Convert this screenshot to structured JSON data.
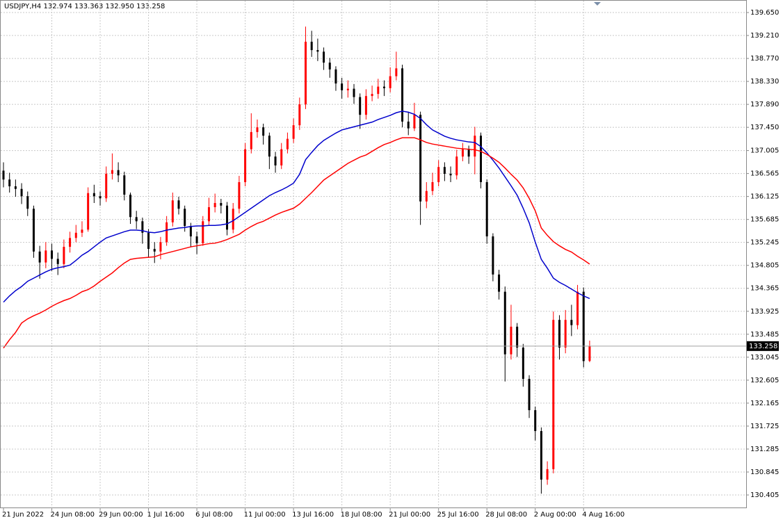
{
  "chart_data": {
    "type": "candlestick",
    "header": "USDJPY,H4  132.974 133.363 132.950 133.258",
    "categories": [
      "21 Jun 2022",
      null,
      null,
      null,
      null,
      null,
      null,
      null,
      "24 Jun 08:00",
      null,
      null,
      null,
      null,
      null,
      null,
      null,
      "29 Jun 00:00",
      null,
      null,
      null,
      null,
      null,
      null,
      null,
      "1 Jul 16:00",
      null,
      null,
      null,
      null,
      null,
      null,
      null,
      "6 Jul 08:00",
      null,
      null,
      null,
      null,
      null,
      null,
      null,
      "11 Jul 00:00",
      null,
      null,
      null,
      null,
      null,
      null,
      null,
      "13 Jul 16:00",
      null,
      null,
      null,
      null,
      null,
      null,
      null,
      "18 Jul 08:00",
      null,
      null,
      null,
      null,
      null,
      null,
      null,
      "21 Jul 00:00",
      null,
      null,
      null,
      null,
      null,
      null,
      null,
      "25 Jul 16:00",
      null,
      null,
      null,
      null,
      null,
      null,
      null,
      "28 Jul 08:00",
      null,
      null,
      null,
      null,
      null,
      null,
      null,
      "2 Aug 00:00",
      null,
      null,
      null,
      null,
      null,
      null,
      null,
      "4 Aug 16:00",
      null
    ],
    "open": [
      136.62,
      136.45,
      136.32,
      136.27,
      136.13,
      135.89,
      135.07,
      134.86,
      135.09,
      134.93,
      134.83,
      135.16,
      135.33,
      135.43,
      135.49,
      136.19,
      136.13,
      136.09,
      136.56,
      136.63,
      136.53,
      136.16,
      135.73,
      135.65,
      135.43,
      135.12,
      135.07,
      135.25,
      135.63,
      136.05,
      135.89,
      135.56,
      135.36,
      135.23,
      135.65,
      135.92,
      136.0,
      135.95,
      135.49,
      135.89,
      136.4,
      137.03,
      137.36,
      137.45,
      137.29,
      136.89,
      136.72,
      137.03,
      137.23,
      137.49,
      137.89,
      139.09,
      138.93,
      138.9,
      138.69,
      138.56,
      138.29,
      138.16,
      138.19,
      138.03,
      137.69,
      138.05,
      138.09,
      138.23,
      138.2,
      138.43,
      138.58,
      137.56,
      137.43,
      137.69,
      136.03,
      136.23,
      136.4,
      136.69,
      136.56,
      136.53,
      136.89,
      137.03,
      136.89,
      137.29,
      136.4,
      135.36,
      134.63,
      134.3,
      133.1,
      133.63,
      133.23,
      132.63,
      132.03,
      131.63,
      130.7,
      130.9,
      133.76,
      133.23,
      133.76,
      133.66,
      134.3,
      132.974
    ],
    "high": [
      136.78,
      136.58,
      136.45,
      136.38,
      136.22,
      135.95,
      135.18,
      135.25,
      135.22,
      135.05,
      135.3,
      135.45,
      135.58,
      135.65,
      136.3,
      136.35,
      136.22,
      136.7,
      136.95,
      136.78,
      136.6,
      136.2,
      135.85,
      135.72,
      135.5,
      135.25,
      135.35,
      135.75,
      136.2,
      136.12,
      135.95,
      135.62,
      135.45,
      135.75,
      136.1,
      136.18,
      136.08,
      136.02,
      136.0,
      136.52,
      137.15,
      137.72,
      137.6,
      137.52,
      137.35,
      136.98,
      137.15,
      137.35,
      137.62,
      138.02,
      139.38,
      139.3,
      139.15,
      138.98,
      138.78,
      138.62,
      138.4,
      138.35,
      138.28,
      138.1,
      138.18,
      138.25,
      138.38,
      138.35,
      138.6,
      138.9,
      138.65,
      137.75,
      137.92,
      137.75,
      136.4,
      136.58,
      136.82,
      136.78,
      136.7,
      137.02,
      137.15,
      137.1,
      137.46,
      137.35,
      136.45,
      135.42,
      134.72,
      134.4,
      134.05,
      133.7,
      133.3,
      132.7,
      132.1,
      131.7,
      131.05,
      133.92,
      133.85,
      133.95,
      134.05,
      134.43,
      134.38,
      133.363
    ],
    "low": [
      136.3,
      136.2,
      136.12,
      135.98,
      135.75,
      134.95,
      134.55,
      134.75,
      134.7,
      134.62,
      134.75,
      135.05,
      135.25,
      135.35,
      135.45,
      136.0,
      135.95,
      136.02,
      136.45,
      136.4,
      136.05,
      135.6,
      135.5,
      135.22,
      134.95,
      134.85,
      134.92,
      135.18,
      135.55,
      135.78,
      135.45,
      135.15,
      135.02,
      135.18,
      135.58,
      135.82,
      135.8,
      135.38,
      135.42,
      135.8,
      136.32,
      136.95,
      137.25,
      137.12,
      136.65,
      136.58,
      136.65,
      136.95,
      137.15,
      137.4,
      137.8,
      138.8,
      138.72,
      138.55,
      138.4,
      138.15,
      138.0,
      138.02,
      137.9,
      137.42,
      137.6,
      137.95,
      138.0,
      138.05,
      138.12,
      138.35,
      137.45,
      137.3,
      137.38,
      135.58,
      135.9,
      136.15,
      136.32,
      136.42,
      136.4,
      136.45,
      136.8,
      136.75,
      136.55,
      136.28,
      135.22,
      134.5,
      134.15,
      132.58,
      133.0,
      133.05,
      132.48,
      131.88,
      131.45,
      130.43,
      130.6,
      130.82,
      133.0,
      133.12,
      133.45,
      133.58,
      132.85,
      132.95
    ],
    "close": [
      136.45,
      136.32,
      136.27,
      136.13,
      135.89,
      135.07,
      134.86,
      135.09,
      134.93,
      134.83,
      135.16,
      135.33,
      135.43,
      135.49,
      136.19,
      136.13,
      136.09,
      136.56,
      136.63,
      136.53,
      136.16,
      135.73,
      135.65,
      135.43,
      135.12,
      135.07,
      135.25,
      135.63,
      136.05,
      135.89,
      135.56,
      135.36,
      135.23,
      135.65,
      135.92,
      136.0,
      135.95,
      135.49,
      135.89,
      136.4,
      137.03,
      137.36,
      137.45,
      137.29,
      136.89,
      136.72,
      137.03,
      137.23,
      137.49,
      137.89,
      139.09,
      138.93,
      138.9,
      138.69,
      138.56,
      138.29,
      138.16,
      138.19,
      138.03,
      137.69,
      138.05,
      138.09,
      138.23,
      138.2,
      138.43,
      138.58,
      137.56,
      137.43,
      137.69,
      136.03,
      136.23,
      136.4,
      136.69,
      136.56,
      136.53,
      136.89,
      137.03,
      136.89,
      137.29,
      136.4,
      135.36,
      134.63,
      134.3,
      133.1,
      133.63,
      133.23,
      132.63,
      132.03,
      131.63,
      130.7,
      130.9,
      133.76,
      133.23,
      133.76,
      133.66,
      134.3,
      132.97,
      133.258
    ],
    "up_color": "#ff0000",
    "down_color": "#000000",
    "lines": [
      {
        "color": "#0000cc",
        "values": [
          134.1,
          134.22,
          134.32,
          134.4,
          134.5,
          134.56,
          134.62,
          134.68,
          134.73,
          134.76,
          134.78,
          134.81,
          134.9,
          135.0,
          135.07,
          135.16,
          135.25,
          135.33,
          135.37,
          135.41,
          135.45,
          135.48,
          135.48,
          135.47,
          135.44,
          135.43,
          135.45,
          135.48,
          135.5,
          135.52,
          135.53,
          135.55,
          135.56,
          135.56,
          135.57,
          135.57,
          135.58,
          135.6,
          135.66,
          135.74,
          135.82,
          135.9,
          135.98,
          136.06,
          136.14,
          136.2,
          136.25,
          136.31,
          136.38,
          136.55,
          136.83,
          136.97,
          137.1,
          137.2,
          137.27,
          137.34,
          137.4,
          137.43,
          137.46,
          137.49,
          137.52,
          137.55,
          137.6,
          137.64,
          137.68,
          137.73,
          137.76,
          137.74,
          137.7,
          137.62,
          137.5,
          137.4,
          137.34,
          137.28,
          137.24,
          137.21,
          137.19,
          137.17,
          137.16,
          137.08,
          136.96,
          136.82,
          136.67,
          136.5,
          136.33,
          136.15,
          135.9,
          135.62,
          135.25,
          134.92,
          134.75,
          134.56,
          134.48,
          134.42,
          134.35,
          134.28,
          134.22,
          134.17
        ]
      },
      {
        "color": "#ff0000",
        "values": [
          133.22,
          133.38,
          133.52,
          133.7,
          133.78,
          133.84,
          133.89,
          133.95,
          134.02,
          134.08,
          134.13,
          134.17,
          134.23,
          134.3,
          134.34,
          134.41,
          134.5,
          134.58,
          134.66,
          134.76,
          134.85,
          134.92,
          134.94,
          134.95,
          134.96,
          134.97,
          135.01,
          135.04,
          135.07,
          135.1,
          135.13,
          135.16,
          135.18,
          135.2,
          135.22,
          135.23,
          135.26,
          135.3,
          135.35,
          135.4,
          135.48,
          135.55,
          135.61,
          135.65,
          135.71,
          135.77,
          135.82,
          135.86,
          135.9,
          135.98,
          136.09,
          136.2,
          136.32,
          136.44,
          136.52,
          136.6,
          136.68,
          136.76,
          136.82,
          136.88,
          136.92,
          136.99,
          137.06,
          137.12,
          137.16,
          137.21,
          137.25,
          137.25,
          137.25,
          137.21,
          137.16,
          137.13,
          137.11,
          137.09,
          137.07,
          137.05,
          137.04,
          137.03,
          137.02,
          136.99,
          136.93,
          136.86,
          136.78,
          136.67,
          136.55,
          136.44,
          136.29,
          136.09,
          135.85,
          135.52,
          135.38,
          135.26,
          135.18,
          135.11,
          135.06,
          134.98,
          134.91,
          134.83
        ]
      }
    ],
    "ylim": [
      130.152,
      139.89
    ],
    "yticks": [
      {
        "value": 139.65,
        "label": "139.650"
      },
      {
        "value": 139.21,
        "label": "139.210"
      },
      {
        "value": 138.77,
        "label": "138.770"
      },
      {
        "value": 138.33,
        "label": "138.330"
      },
      {
        "value": 137.89,
        "label": "137.890"
      },
      {
        "value": 137.45,
        "label": "137.450"
      },
      137.005,
      136.565,
      136.125,
      135.685,
      135.245,
      134.805,
      134.365,
      133.925,
      133.485,
      133.045,
      132.605,
      132.165,
      131.725,
      131.285,
      130.845,
      130.405
    ],
    "grid": true,
    "price_line": true
  }
}
